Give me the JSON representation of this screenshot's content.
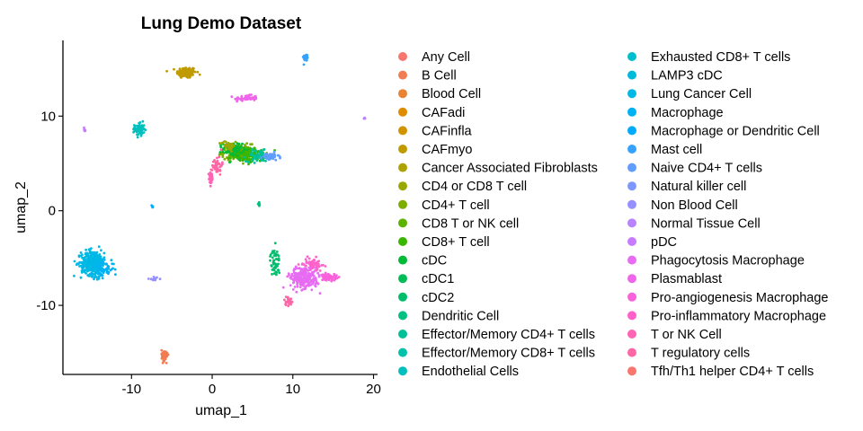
{
  "chart_data": {
    "type": "scatter",
    "title": "Lung Demo Dataset",
    "xlabel": "umap_1",
    "ylabel": "umap_2",
    "xlim": [
      -18.5,
      20.5
    ],
    "ylim": [
      -17.3,
      18.0
    ],
    "xticks": [
      -10,
      0,
      10,
      20
    ],
    "xtick_labels": [
      "-10",
      "0",
      "10",
      "20"
    ],
    "yticks": [
      -10,
      0,
      10
    ],
    "ytick_labels": [
      "-10",
      "0",
      "10"
    ],
    "grid": false,
    "legend_position": "right",
    "categories": [
      {
        "name": "Any Cell",
        "color": "#F8766D"
      },
      {
        "name": "B Cell",
        "color": "#F27D52"
      },
      {
        "name": "Blood Cell",
        "color": "#EA8331"
      },
      {
        "name": "CAFadi",
        "color": "#DE8C00"
      },
      {
        "name": "CAFinfla",
        "color": "#D09400"
      },
      {
        "name": "CAFmyo",
        "color": "#C09B00"
      },
      {
        "name": "Cancer Associated Fibroblasts",
        "color": "#AEA200"
      },
      {
        "name": "CD4 or CD8 T cell",
        "color": "#99A800"
      },
      {
        "name": "CD4+ T cell",
        "color": "#7CAE00"
      },
      {
        "name": "CD8 T or NK cell",
        "color": "#5BB300"
      },
      {
        "name": "CD8+ T cell",
        "color": "#39B600"
      },
      {
        "name": "cDC",
        "color": "#00BA38"
      },
      {
        "name": "cDC1",
        "color": "#00BC56"
      },
      {
        "name": "cDC2",
        "color": "#00BE6C"
      },
      {
        "name": "Dendritic Cell",
        "color": "#00C083"
      },
      {
        "name": "Effector/Memory CD4+ T cells",
        "color": "#00C097"
      },
      {
        "name": "Effector/Memory CD8+ T cells",
        "color": "#00C1AA"
      },
      {
        "name": "Endothelial Cells",
        "color": "#00BFBC"
      },
      {
        "name": "Exhausted CD8+ T cells",
        "color": "#00BECC"
      },
      {
        "name": "LAMP3 cDC",
        "color": "#00BBDA"
      },
      {
        "name": "Lung Cancer Cell",
        "color": "#00B8E5"
      },
      {
        "name": "Macrophage",
        "color": "#00B2F3"
      },
      {
        "name": "Macrophage or Dendritic Cell",
        "color": "#00ABFD"
      },
      {
        "name": "Mast cell",
        "color": "#35A2FF"
      },
      {
        "name": "Naive CD4+ T cells",
        "color": "#619CFF"
      },
      {
        "name": "Natural killer cell",
        "color": "#7F96FF"
      },
      {
        "name": "Non Blood Cell",
        "color": "#9590FF"
      },
      {
        "name": "Normal Tissue Cell",
        "color": "#B983FF"
      },
      {
        "name": "pDC",
        "color": "#C77CFF"
      },
      {
        "name": "Phagocytosis Macrophage",
        "color": "#E76BF3"
      },
      {
        "name": "Plasmablast",
        "color": "#F066EA"
      },
      {
        "name": "Pro-angiogenesis Macrophage",
        "color": "#FA62DB"
      },
      {
        "name": "Pro-inflammatory Macrophage",
        "color": "#FF61C9"
      },
      {
        "name": "T or NK Cell",
        "color": "#FF63B6"
      },
      {
        "name": "T regulatory cells",
        "color": "#FF67A4"
      },
      {
        "name": "Tfh/Th1 helper CD4+ T cells",
        "color": "#F8766D"
      }
    ],
    "clusters": [
      {
        "category": "CAFmyo",
        "x": -3.2,
        "y": 14.6,
        "sx": 1.0,
        "sy": 0.5,
        "n": 140
      },
      {
        "category": "Mast cell",
        "x": 11.6,
        "y": 16.2,
        "sx": 0.25,
        "sy": 0.3,
        "n": 40
      },
      {
        "category": "Plasmablast",
        "x": 4.2,
        "y": 11.9,
        "sx": 1.2,
        "sy": 0.25,
        "n": 60
      },
      {
        "category": "Endothelial Cells",
        "x": -9.0,
        "y": 8.6,
        "sx": 0.5,
        "sy": 0.6,
        "n": 70
      },
      {
        "category": "pDC",
        "x": -15.8,
        "y": 8.6,
        "sx": 0.15,
        "sy": 0.2,
        "n": 8
      },
      {
        "category": "Normal Tissue Cell",
        "x": 18.9,
        "y": 9.8,
        "sx": 0.1,
        "sy": 0.15,
        "n": 5
      },
      {
        "category": "CD4+ T cell",
        "x": 3.0,
        "y": 6.2,
        "sx": 1.5,
        "sy": 0.7,
        "n": 160
      },
      {
        "category": "CD8+ T cell",
        "x": 4.5,
        "y": 5.9,
        "sx": 1.8,
        "sy": 0.6,
        "n": 140
      },
      {
        "category": "cDC",
        "x": 2.5,
        "y": 6.5,
        "sx": 1.0,
        "sy": 0.6,
        "n": 90
      },
      {
        "category": "Effector/Memory CD4+ T cells",
        "x": 5.8,
        "y": 5.8,
        "sx": 1.3,
        "sy": 0.5,
        "n": 70
      },
      {
        "category": "Naive CD4+ T cells",
        "x": 7.2,
        "y": 5.7,
        "sx": 0.9,
        "sy": 0.35,
        "n": 40
      },
      {
        "category": "CD4 or CD8 T cell",
        "x": 2.0,
        "y": 6.9,
        "sx": 0.7,
        "sy": 0.4,
        "n": 40
      },
      {
        "category": "T regulatory cells",
        "x": 0.6,
        "y": 4.8,
        "sx": 0.5,
        "sy": 0.8,
        "n": 40
      },
      {
        "category": "T or NK Cell",
        "x": -0.1,
        "y": 3.4,
        "sx": 0.25,
        "sy": 0.6,
        "n": 25
      },
      {
        "category": "Dendritic Cell",
        "x": 5.8,
        "y": 0.7,
        "sx": 0.1,
        "sy": 0.2,
        "n": 8
      },
      {
        "category": "Macrophage or Dendritic Cell",
        "x": -7.4,
        "y": 0.5,
        "sx": 0.1,
        "sy": 0.15,
        "n": 5
      },
      {
        "category": "Lung Cancer Cell",
        "x": -14.8,
        "y": -5.5,
        "sx": 1.2,
        "sy": 1.1,
        "n": 360
      },
      {
        "category": "Macrophage",
        "x": -13.5,
        "y": -6.2,
        "sx": 1.1,
        "sy": 0.7,
        "n": 60
      },
      {
        "category": "Non Blood Cell",
        "x": -7.3,
        "y": -7.2,
        "sx": 0.7,
        "sy": 0.15,
        "n": 12
      },
      {
        "category": "Phagocytosis Macrophage",
        "x": 11.5,
        "y": -7.0,
        "sx": 1.5,
        "sy": 1.0,
        "n": 260
      },
      {
        "category": "Pro-angiogenesis Macrophage",
        "x": 14.5,
        "y": -7.0,
        "sx": 0.8,
        "sy": 0.3,
        "n": 60
      },
      {
        "category": "Pro-inflammatory Macrophage",
        "x": 12.5,
        "y": -5.6,
        "sx": 1.0,
        "sy": 0.5,
        "n": 60
      },
      {
        "category": "cDC2",
        "x": 7.8,
        "y": -5.5,
        "sx": 0.5,
        "sy": 1.2,
        "n": 50
      },
      {
        "category": "T regulatory cells",
        "x": 9.4,
        "y": -9.5,
        "sx": 0.4,
        "sy": 0.4,
        "n": 25
      },
      {
        "category": "B Cell",
        "x": -5.9,
        "y": -15.3,
        "sx": 0.3,
        "sy": 0.5,
        "n": 90
      }
    ]
  }
}
